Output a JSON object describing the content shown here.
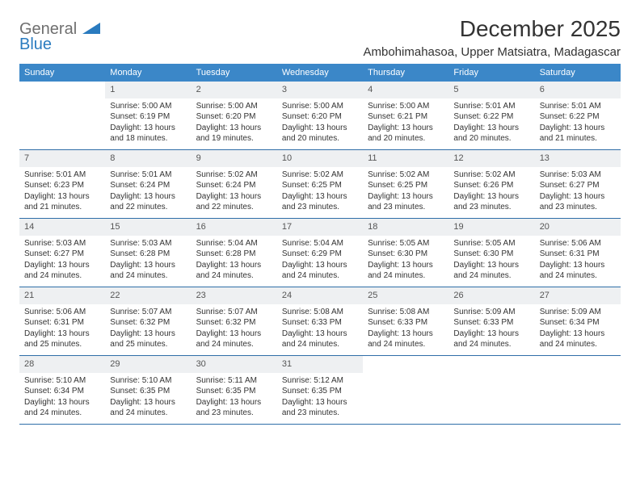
{
  "brand": {
    "line1": "General",
    "line2": "Blue",
    "color_general": "#6f6f6f",
    "color_blue": "#2a7bbf",
    "shape_color": "#2a7bbf"
  },
  "header": {
    "month_title": "December 2025",
    "location": "Ambohimahasoa, Upper Matsiatra, Madagascar"
  },
  "colors": {
    "header_bg": "#3b87c8",
    "header_text": "#ffffff",
    "daynum_bg": "#eef0f2",
    "week_border": "#2f6ea8",
    "text": "#333333"
  },
  "day_labels": [
    "Sunday",
    "Monday",
    "Tuesday",
    "Wednesday",
    "Thursday",
    "Friday",
    "Saturday"
  ],
  "weeks": [
    [
      {
        "day": "",
        "lines": []
      },
      {
        "day": "1",
        "lines": [
          "Sunrise: 5:00 AM",
          "Sunset: 6:19 PM",
          "Daylight: 13 hours and 18 minutes."
        ]
      },
      {
        "day": "2",
        "lines": [
          "Sunrise: 5:00 AM",
          "Sunset: 6:20 PM",
          "Daylight: 13 hours and 19 minutes."
        ]
      },
      {
        "day": "3",
        "lines": [
          "Sunrise: 5:00 AM",
          "Sunset: 6:20 PM",
          "Daylight: 13 hours and 20 minutes."
        ]
      },
      {
        "day": "4",
        "lines": [
          "Sunrise: 5:00 AM",
          "Sunset: 6:21 PM",
          "Daylight: 13 hours and 20 minutes."
        ]
      },
      {
        "day": "5",
        "lines": [
          "Sunrise: 5:01 AM",
          "Sunset: 6:22 PM",
          "Daylight: 13 hours and 20 minutes."
        ]
      },
      {
        "day": "6",
        "lines": [
          "Sunrise: 5:01 AM",
          "Sunset: 6:22 PM",
          "Daylight: 13 hours and 21 minutes."
        ]
      }
    ],
    [
      {
        "day": "7",
        "lines": [
          "Sunrise: 5:01 AM",
          "Sunset: 6:23 PM",
          "Daylight: 13 hours and 21 minutes."
        ]
      },
      {
        "day": "8",
        "lines": [
          "Sunrise: 5:01 AM",
          "Sunset: 6:24 PM",
          "Daylight: 13 hours and 22 minutes."
        ]
      },
      {
        "day": "9",
        "lines": [
          "Sunrise: 5:02 AM",
          "Sunset: 6:24 PM",
          "Daylight: 13 hours and 22 minutes."
        ]
      },
      {
        "day": "10",
        "lines": [
          "Sunrise: 5:02 AM",
          "Sunset: 6:25 PM",
          "Daylight: 13 hours and 23 minutes."
        ]
      },
      {
        "day": "11",
        "lines": [
          "Sunrise: 5:02 AM",
          "Sunset: 6:25 PM",
          "Daylight: 13 hours and 23 minutes."
        ]
      },
      {
        "day": "12",
        "lines": [
          "Sunrise: 5:02 AM",
          "Sunset: 6:26 PM",
          "Daylight: 13 hours and 23 minutes."
        ]
      },
      {
        "day": "13",
        "lines": [
          "Sunrise: 5:03 AM",
          "Sunset: 6:27 PM",
          "Daylight: 13 hours and 23 minutes."
        ]
      }
    ],
    [
      {
        "day": "14",
        "lines": [
          "Sunrise: 5:03 AM",
          "Sunset: 6:27 PM",
          "Daylight: 13 hours and 24 minutes."
        ]
      },
      {
        "day": "15",
        "lines": [
          "Sunrise: 5:03 AM",
          "Sunset: 6:28 PM",
          "Daylight: 13 hours and 24 minutes."
        ]
      },
      {
        "day": "16",
        "lines": [
          "Sunrise: 5:04 AM",
          "Sunset: 6:28 PM",
          "Daylight: 13 hours and 24 minutes."
        ]
      },
      {
        "day": "17",
        "lines": [
          "Sunrise: 5:04 AM",
          "Sunset: 6:29 PM",
          "Daylight: 13 hours and 24 minutes."
        ]
      },
      {
        "day": "18",
        "lines": [
          "Sunrise: 5:05 AM",
          "Sunset: 6:30 PM",
          "Daylight: 13 hours and 24 minutes."
        ]
      },
      {
        "day": "19",
        "lines": [
          "Sunrise: 5:05 AM",
          "Sunset: 6:30 PM",
          "Daylight: 13 hours and 24 minutes."
        ]
      },
      {
        "day": "20",
        "lines": [
          "Sunrise: 5:06 AM",
          "Sunset: 6:31 PM",
          "Daylight: 13 hours and 24 minutes."
        ]
      }
    ],
    [
      {
        "day": "21",
        "lines": [
          "Sunrise: 5:06 AM",
          "Sunset: 6:31 PM",
          "Daylight: 13 hours and 25 minutes."
        ]
      },
      {
        "day": "22",
        "lines": [
          "Sunrise: 5:07 AM",
          "Sunset: 6:32 PM",
          "Daylight: 13 hours and 25 minutes."
        ]
      },
      {
        "day": "23",
        "lines": [
          "Sunrise: 5:07 AM",
          "Sunset: 6:32 PM",
          "Daylight: 13 hours and 24 minutes."
        ]
      },
      {
        "day": "24",
        "lines": [
          "Sunrise: 5:08 AM",
          "Sunset: 6:33 PM",
          "Daylight: 13 hours and 24 minutes."
        ]
      },
      {
        "day": "25",
        "lines": [
          "Sunrise: 5:08 AM",
          "Sunset: 6:33 PM",
          "Daylight: 13 hours and 24 minutes."
        ]
      },
      {
        "day": "26",
        "lines": [
          "Sunrise: 5:09 AM",
          "Sunset: 6:33 PM",
          "Daylight: 13 hours and 24 minutes."
        ]
      },
      {
        "day": "27",
        "lines": [
          "Sunrise: 5:09 AM",
          "Sunset: 6:34 PM",
          "Daylight: 13 hours and 24 minutes."
        ]
      }
    ],
    [
      {
        "day": "28",
        "lines": [
          "Sunrise: 5:10 AM",
          "Sunset: 6:34 PM",
          "Daylight: 13 hours and 24 minutes."
        ]
      },
      {
        "day": "29",
        "lines": [
          "Sunrise: 5:10 AM",
          "Sunset: 6:35 PM",
          "Daylight: 13 hours and 24 minutes."
        ]
      },
      {
        "day": "30",
        "lines": [
          "Sunrise: 5:11 AM",
          "Sunset: 6:35 PM",
          "Daylight: 13 hours and 23 minutes."
        ]
      },
      {
        "day": "31",
        "lines": [
          "Sunrise: 5:12 AM",
          "Sunset: 6:35 PM",
          "Daylight: 13 hours and 23 minutes."
        ]
      },
      {
        "day": "",
        "lines": []
      },
      {
        "day": "",
        "lines": []
      },
      {
        "day": "",
        "lines": []
      }
    ]
  ]
}
